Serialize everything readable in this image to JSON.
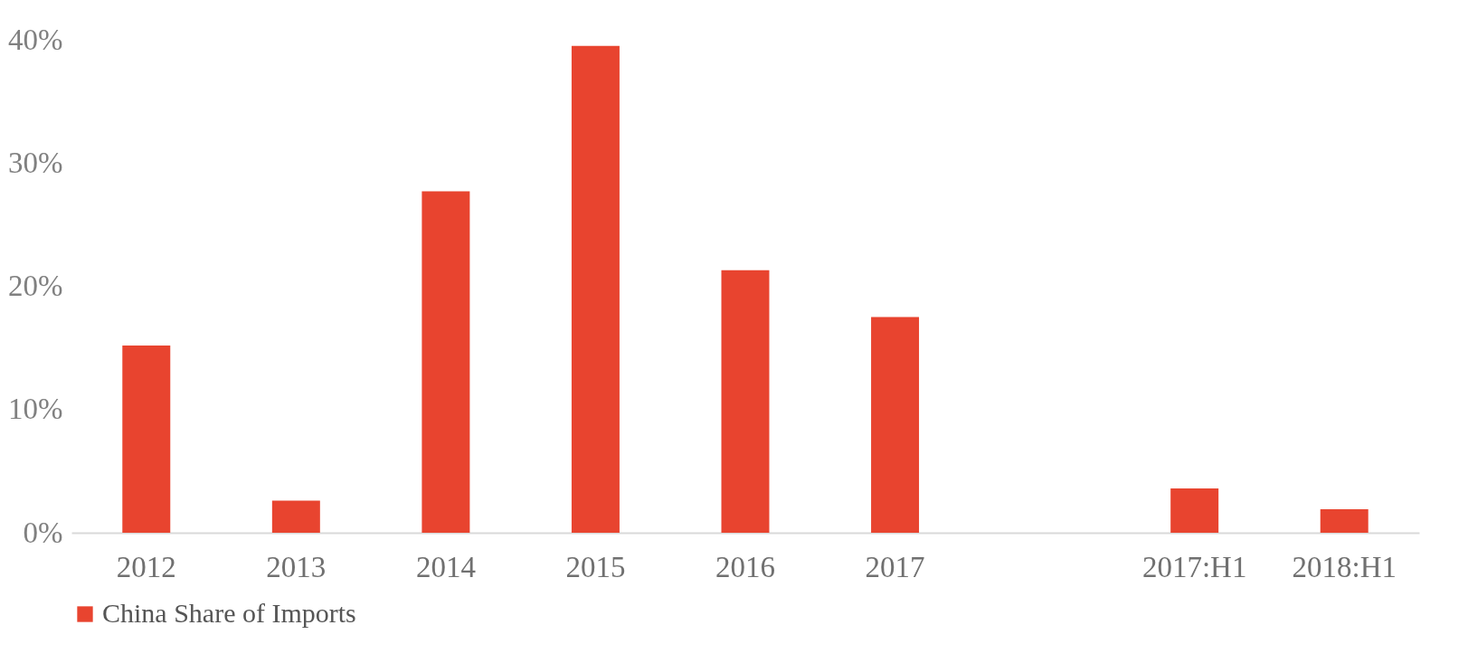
{
  "chart_data": {
    "type": "bar",
    "categories": [
      "2012",
      "2013",
      "2014",
      "2015",
      "2016",
      "2017",
      null,
      "2017:H1",
      "2018:H1"
    ],
    "series": [
      {
        "name": "China Share of Imports",
        "color": "#e8442f",
        "values": [
          15.2,
          2.6,
          27.7,
          39.5,
          21.3,
          17.5,
          null,
          3.6,
          1.9
        ]
      }
    ],
    "ylim": [
      0,
      40
    ],
    "yticks": [
      {
        "value": 0,
        "label": "0%"
      },
      {
        "value": 10,
        "label": "10%"
      },
      {
        "value": 20,
        "label": "20%"
      },
      {
        "value": 30,
        "label": "30%"
      },
      {
        "value": 40,
        "label": "40%"
      }
    ],
    "grid": false,
    "legend": "bottom"
  }
}
